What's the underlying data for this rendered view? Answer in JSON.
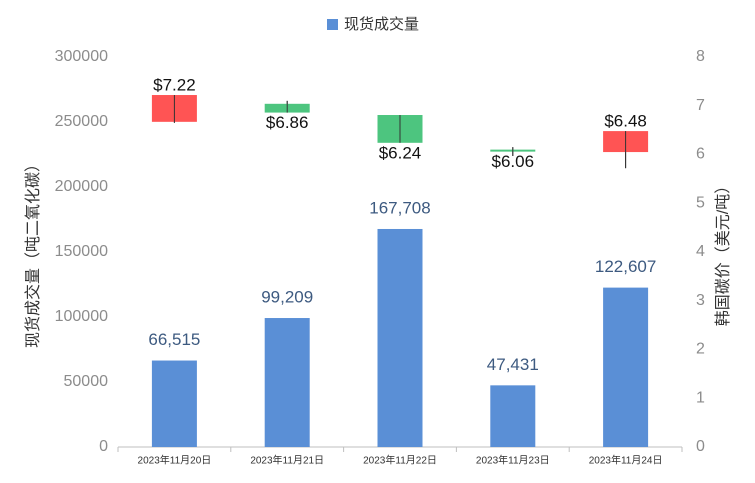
{
  "chart_data": {
    "type": "bar",
    "categories": [
      "2023年11月20日",
      "2023年11月21日",
      "2023年11月22日",
      "2023年11月23日",
      "2023年11月24日"
    ],
    "y_label": "现货成交量（吨二氧化碳）",
    "y2_label": "韩国碳价（美元/吨）",
    "ylim": [
      0,
      300000
    ],
    "yticks": [
      0,
      50000,
      100000,
      150000,
      200000,
      250000,
      300000
    ],
    "y2lim": [
      0,
      8
    ],
    "y2ticks": [
      0,
      1,
      2,
      3,
      4,
      5,
      6,
      7,
      8
    ],
    "legend": "top",
    "series": [
      {
        "name": "现货成交量",
        "color": "#5a8fd6",
        "values": [
          66515,
          99209,
          167708,
          47431,
          122607
        ],
        "value_labels": [
          "66,515",
          "99,209",
          "167,708",
          "47,431",
          "122,607"
        ]
      },
      {
        "type": "candlestick",
        "axis": "y2",
        "up_color": "#ff5454",
        "down_color": "#4dc57f",
        "open": [
          6.67,
          7.04,
          6.81,
          6.1,
          6.05
        ],
        "high": [
          7.22,
          7.1,
          6.81,
          6.15,
          6.48
        ],
        "low": [
          6.65,
          6.86,
          6.24,
          5.97,
          5.72
        ],
        "close": [
          7.22,
          6.86,
          6.24,
          6.06,
          6.48
        ],
        "value_labels": [
          "$7.22",
          "$6.86",
          "$6.24",
          "$6.06",
          "$6.48"
        ]
      }
    ]
  }
}
